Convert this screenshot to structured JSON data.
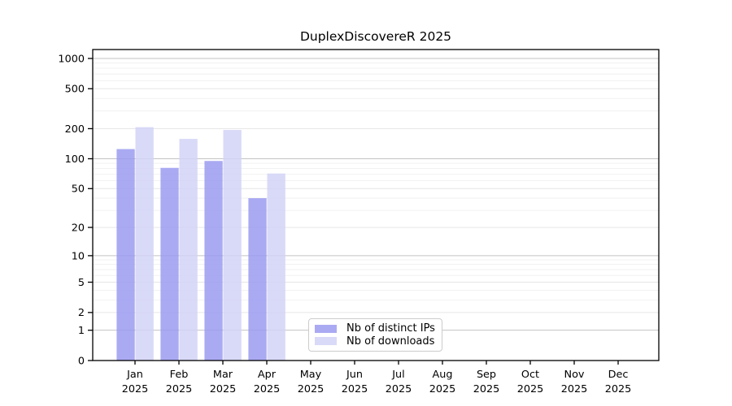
{
  "chart_data": {
    "type": "bar",
    "title": "DuplexDiscovereR 2025",
    "categories": [
      "Jan 2025",
      "Feb 2025",
      "Mar 2025",
      "Apr 2025",
      "May 2025",
      "Jun 2025",
      "Jul 2025",
      "Aug 2025",
      "Sep 2025",
      "Oct 2025",
      "Nov 2025",
      "Dec 2025"
    ],
    "series": [
      {
        "name": "Nb of distinct IPs",
        "color": "#9b9bf1",
        "values": [
          125,
          81,
          95,
          40,
          null,
          null,
          null,
          null,
          null,
          null,
          null,
          null
        ]
      },
      {
        "name": "Nb of downloads",
        "color": "#d2d2f7",
        "values": [
          207,
          158,
          194,
          71,
          null,
          null,
          null,
          null,
          null,
          null,
          null,
          null
        ]
      }
    ],
    "yticks": [
      0,
      1,
      2,
      5,
      10,
      20,
      50,
      100,
      200,
      500,
      1000
    ],
    "yminor": [
      3,
      4,
      6,
      7,
      8,
      9,
      30,
      40,
      60,
      70,
      80,
      90,
      300,
      400,
      600,
      700,
      800,
      900
    ],
    "yscale": "log1p",
    "ylim": [
      0,
      1000
    ],
    "xlabel": "",
    "ylabel": "",
    "grid": "horizontal",
    "legend_position": "inside-bottom-center",
    "colors": {
      "major_grid": "#c3c3c3",
      "tick_grid": "#e6e6e6",
      "minor_grid": "#eeeeee",
      "axis": "#000000",
      "text": "#000000",
      "background": "#ffffff"
    }
  }
}
